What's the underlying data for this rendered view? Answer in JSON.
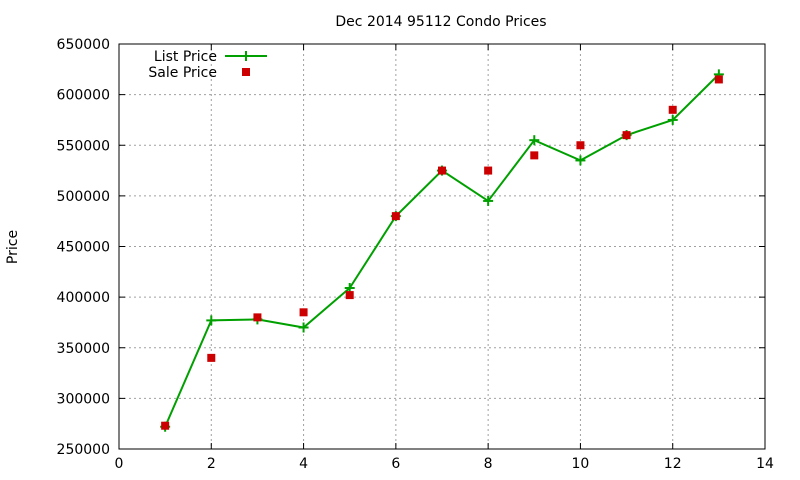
{
  "chart_data": {
    "type": "line",
    "title": "Dec 2014 95112 Condo Prices",
    "xlabel": "",
    "ylabel": "Price",
    "xlim": [
      0,
      14
    ],
    "ylim": [
      250000,
      650000
    ],
    "x_ticks": [
      0,
      2,
      4,
      6,
      8,
      10,
      12,
      14
    ],
    "y_ticks": [
      250000,
      300000,
      350000,
      400000,
      450000,
      500000,
      550000,
      600000,
      650000
    ],
    "grid": true,
    "legend_position": "top-left",
    "series": [
      {
        "name": "List Price",
        "style": "lines+points",
        "marker": "plus",
        "color": "#00a000",
        "x": [
          1,
          2,
          3,
          4,
          5,
          6,
          7,
          8,
          9,
          10,
          11,
          12,
          13
        ],
        "y": [
          272000,
          377000,
          378000,
          370000,
          409000,
          480000,
          525000,
          495000,
          555000,
          535000,
          560000,
          575000,
          620000
        ]
      },
      {
        "name": "Sale Price",
        "style": "points",
        "marker": "square",
        "color": "#cc0000",
        "x": [
          1,
          2,
          3,
          4,
          5,
          6,
          7,
          8,
          9,
          10,
          11,
          12,
          13
        ],
        "y": [
          273000,
          340000,
          380000,
          385000,
          402000,
          480000,
          525000,
          525000,
          540000,
          550000,
          560000,
          585000,
          615000
        ]
      }
    ]
  }
}
